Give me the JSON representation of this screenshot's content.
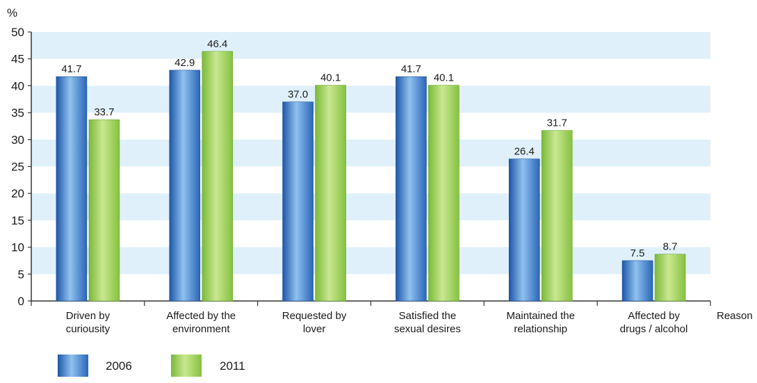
{
  "chart_data": {
    "type": "bar",
    "title": "",
    "ylabel": "%",
    "xlabel": "Reason",
    "ylim": [
      0,
      50
    ],
    "yticks": [
      0,
      5,
      10,
      15,
      20,
      25,
      30,
      35,
      40,
      45,
      50
    ],
    "categories": [
      [
        "Driven by",
        "curiousity"
      ],
      [
        "Affected by the",
        "environment"
      ],
      [
        "Requested by",
        "lover"
      ],
      [
        "Satisfied the",
        "sexual desires"
      ],
      [
        "Maintained the",
        "relationship"
      ],
      [
        "Affected by",
        "drugs / alcohol"
      ]
    ],
    "series": [
      {
        "name": "2006",
        "values": [
          41.7,
          42.9,
          37.0,
          41.7,
          26.4,
          7.5
        ],
        "labels": [
          "41.7",
          "42.9",
          "37.0",
          "41.7",
          "26.4",
          "7.5"
        ],
        "color": "#2f6fc0"
      },
      {
        "name": "2011",
        "values": [
          33.7,
          46.4,
          40.1,
          40.1,
          31.7,
          8.7
        ],
        "labels": [
          "33.7",
          "46.4",
          "40.1",
          "40.1",
          "31.7",
          "8.7"
        ],
        "color": "#8cc63f"
      }
    ],
    "grid": "alternating horizontal bands",
    "band_color": "#dff0fa",
    "legend_position": "bottom-left"
  }
}
